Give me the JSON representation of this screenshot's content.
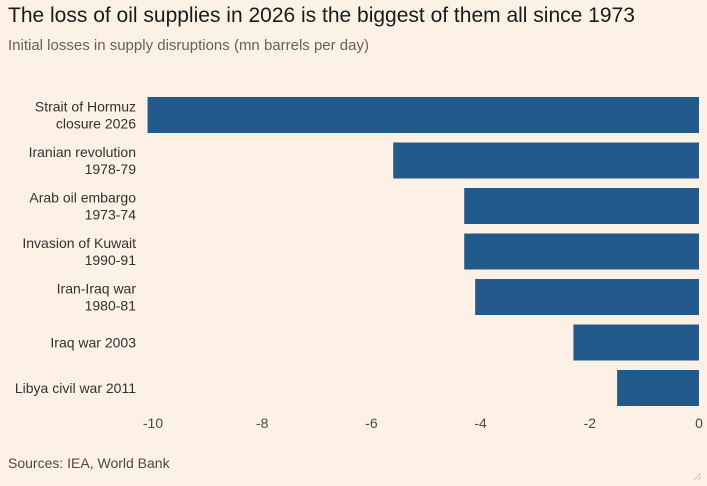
{
  "header": {
    "title": "The loss of oil supplies in 2026 is the biggest of them all since 1973",
    "subtitle": "Initial losses in supply disruptions (mn barrels per day)"
  },
  "footer": {
    "source": "Sources: IEA, World Bank"
  },
  "chart_data": {
    "type": "bar",
    "orientation": "horizontal",
    "title": "The loss of oil supplies in 2026 is the biggest of them all since 1973",
    "subtitle": "Initial losses in supply disruptions (mn barrels per day)",
    "xlabel": "",
    "ylabel": "",
    "categories": [
      [
        "Strait of Hormuz",
        "closure 2026"
      ],
      [
        "Iranian revolution",
        "1978-79"
      ],
      [
        "Arab oil embargo",
        "1973-74"
      ],
      [
        "Invasion of Kuwait",
        "1990-91"
      ],
      [
        "Iran-Iraq war",
        "1980-81"
      ],
      [
        "Iraq war 2003"
      ],
      [
        "Libya civil war 2011"
      ]
    ],
    "values": [
      -10.1,
      -5.6,
      -4.3,
      -4.3,
      -4.1,
      -2.3,
      -1.5
    ],
    "xlim": [
      -10,
      0
    ],
    "xticks": [
      -10,
      -8,
      -6,
      -4,
      -2,
      0
    ],
    "xtick_labels": [
      "-10",
      "-8",
      "-6",
      "-4",
      "-2",
      "0"
    ],
    "grid": false,
    "bar_color": "#235a8c"
  }
}
